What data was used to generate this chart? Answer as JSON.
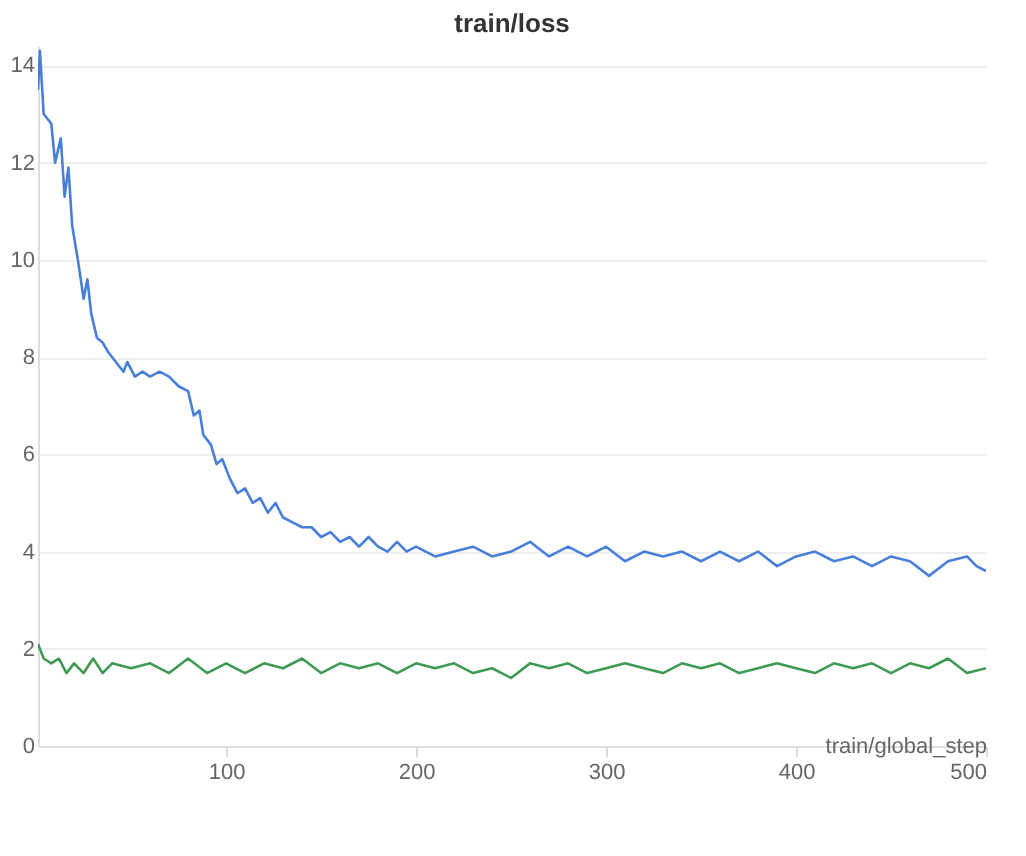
{
  "chart_data": {
    "type": "line",
    "title": "train/loss",
    "xlabel": "train/global_step",
    "xlim": [
      1,
      500
    ],
    "xticks": [
      100,
      200,
      300,
      400,
      500
    ],
    "ylim": [
      0,
      14.4
    ],
    "yticks": [
      0,
      2,
      4,
      6,
      8,
      10,
      12,
      14
    ],
    "grid": "y",
    "legend": false,
    "series": [
      {
        "color": "#3f9a55",
        "x": [
          1,
          4,
          8,
          12,
          16,
          20,
          25,
          30,
          35,
          40,
          50,
          60,
          70,
          80,
          90,
          100,
          110,
          120,
          130,
          140,
          150,
          160,
          170,
          180,
          190,
          200,
          210,
          220,
          230,
          240,
          250,
          260,
          270,
          280,
          290,
          300,
          310,
          320,
          330,
          340,
          350,
          360,
          370,
          380,
          390,
          400,
          410,
          420,
          430,
          440,
          450,
          460,
          470,
          480,
          490,
          500
        ],
        "values": [
          2.1,
          1.8,
          1.7,
          1.8,
          1.5,
          1.7,
          1.5,
          1.8,
          1.5,
          1.7,
          1.6,
          1.7,
          1.5,
          1.8,
          1.5,
          1.7,
          1.5,
          1.7,
          1.6,
          1.8,
          1.5,
          1.7,
          1.6,
          1.7,
          1.5,
          1.7,
          1.6,
          1.7,
          1.5,
          1.6,
          1.4,
          1.7,
          1.6,
          1.7,
          1.5,
          1.6,
          1.7,
          1.6,
          1.5,
          1.7,
          1.6,
          1.7,
          1.5,
          1.6,
          1.7,
          1.6,
          1.5,
          1.7,
          1.6,
          1.7,
          1.5,
          1.7,
          1.6,
          1.8,
          1.5,
          1.6
        ]
      },
      {
        "color": "#4a7fd9",
        "x": [
          1,
          2,
          4,
          8,
          10,
          13,
          15,
          17,
          19,
          22,
          25,
          27,
          29,
          32,
          35,
          38,
          42,
          46,
          48,
          52,
          56,
          60,
          65,
          70,
          75,
          80,
          83,
          86,
          88,
          92,
          95,
          98,
          102,
          106,
          110,
          114,
          118,
          122,
          126,
          130,
          135,
          140,
          145,
          150,
          155,
          160,
          165,
          170,
          175,
          180,
          185,
          190,
          195,
          200,
          210,
          220,
          230,
          240,
          250,
          260,
          270,
          280,
          290,
          300,
          310,
          320,
          330,
          340,
          350,
          360,
          370,
          380,
          390,
          400,
          410,
          420,
          430,
          440,
          450,
          460,
          470,
          480,
          490,
          495,
          500
        ],
        "values": [
          13.5,
          14.3,
          13.0,
          12.8,
          12.0,
          12.5,
          11.3,
          11.9,
          10.7,
          10.0,
          9.2,
          9.6,
          8.9,
          8.4,
          8.3,
          8.1,
          7.9,
          7.7,
          7.9,
          7.6,
          7.7,
          7.6,
          7.7,
          7.6,
          7.4,
          7.3,
          6.8,
          6.9,
          6.4,
          6.2,
          5.8,
          5.9,
          5.5,
          5.2,
          5.3,
          5.0,
          5.1,
          4.8,
          5.0,
          4.7,
          4.6,
          4.5,
          4.5,
          4.3,
          4.4,
          4.2,
          4.3,
          4.1,
          4.3,
          4.1,
          4.0,
          4.2,
          4.0,
          4.1,
          3.9,
          4.0,
          4.1,
          3.9,
          4.0,
          4.2,
          3.9,
          4.1,
          3.9,
          4.1,
          3.8,
          4.0,
          3.9,
          4.0,
          3.8,
          4.0,
          3.8,
          4.0,
          3.7,
          3.9,
          4.0,
          3.8,
          3.9,
          3.7,
          3.9,
          3.8,
          3.5,
          3.8,
          3.9,
          3.7,
          3.6
        ]
      }
    ]
  }
}
